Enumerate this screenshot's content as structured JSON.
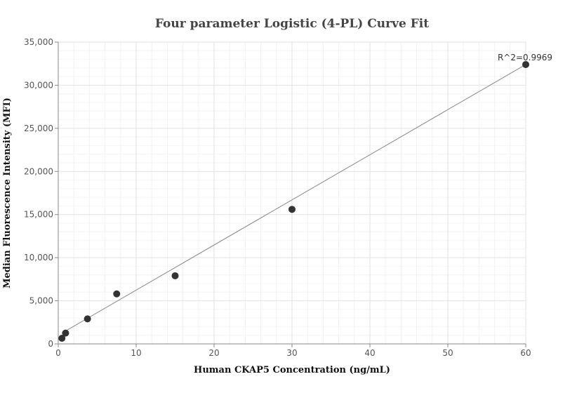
{
  "chart_data": {
    "type": "scatter",
    "title": "Four parameter Logistic (4-PL) Curve Fit",
    "xlabel": "Human CKAP5 Concentration (ng/mL)",
    "ylabel": "Median Fluorescence Intensity (MFI)",
    "xlim": [
      0,
      60
    ],
    "ylim": [
      0,
      35000
    ],
    "x_ticks": [
      0,
      10,
      20,
      30,
      40,
      50,
      60
    ],
    "y_ticks": [
      0,
      5000,
      10000,
      15000,
      20000,
      25000,
      30000,
      35000
    ],
    "x_tick_labels": [
      "0",
      "10",
      "20",
      "30",
      "40",
      "50",
      "60"
    ],
    "y_tick_labels": [
      "0",
      "5,000",
      "10,000",
      "15,000",
      "20,000",
      "25,000",
      "30,000",
      "35,000"
    ],
    "grid": true,
    "series": [
      {
        "points": [
          {
            "x": 0.47,
            "y": 650
          },
          {
            "x": 0.94,
            "y": 1250
          },
          {
            "x": 3.75,
            "y": 2900
          },
          {
            "x": 7.5,
            "y": 5800
          },
          {
            "x": 15,
            "y": 7900
          },
          {
            "x": 30,
            "y": 15600
          },
          {
            "x": 60,
            "y": 32400
          }
        ],
        "color": "#333333"
      }
    ],
    "fit_curve": {
      "x": [
        0.47,
        60
      ],
      "y": [
        1250,
        32400
      ],
      "color": "#888888"
    },
    "annotation": {
      "text": "R^2=0.9969",
      "x": 60,
      "y": 32400
    }
  }
}
